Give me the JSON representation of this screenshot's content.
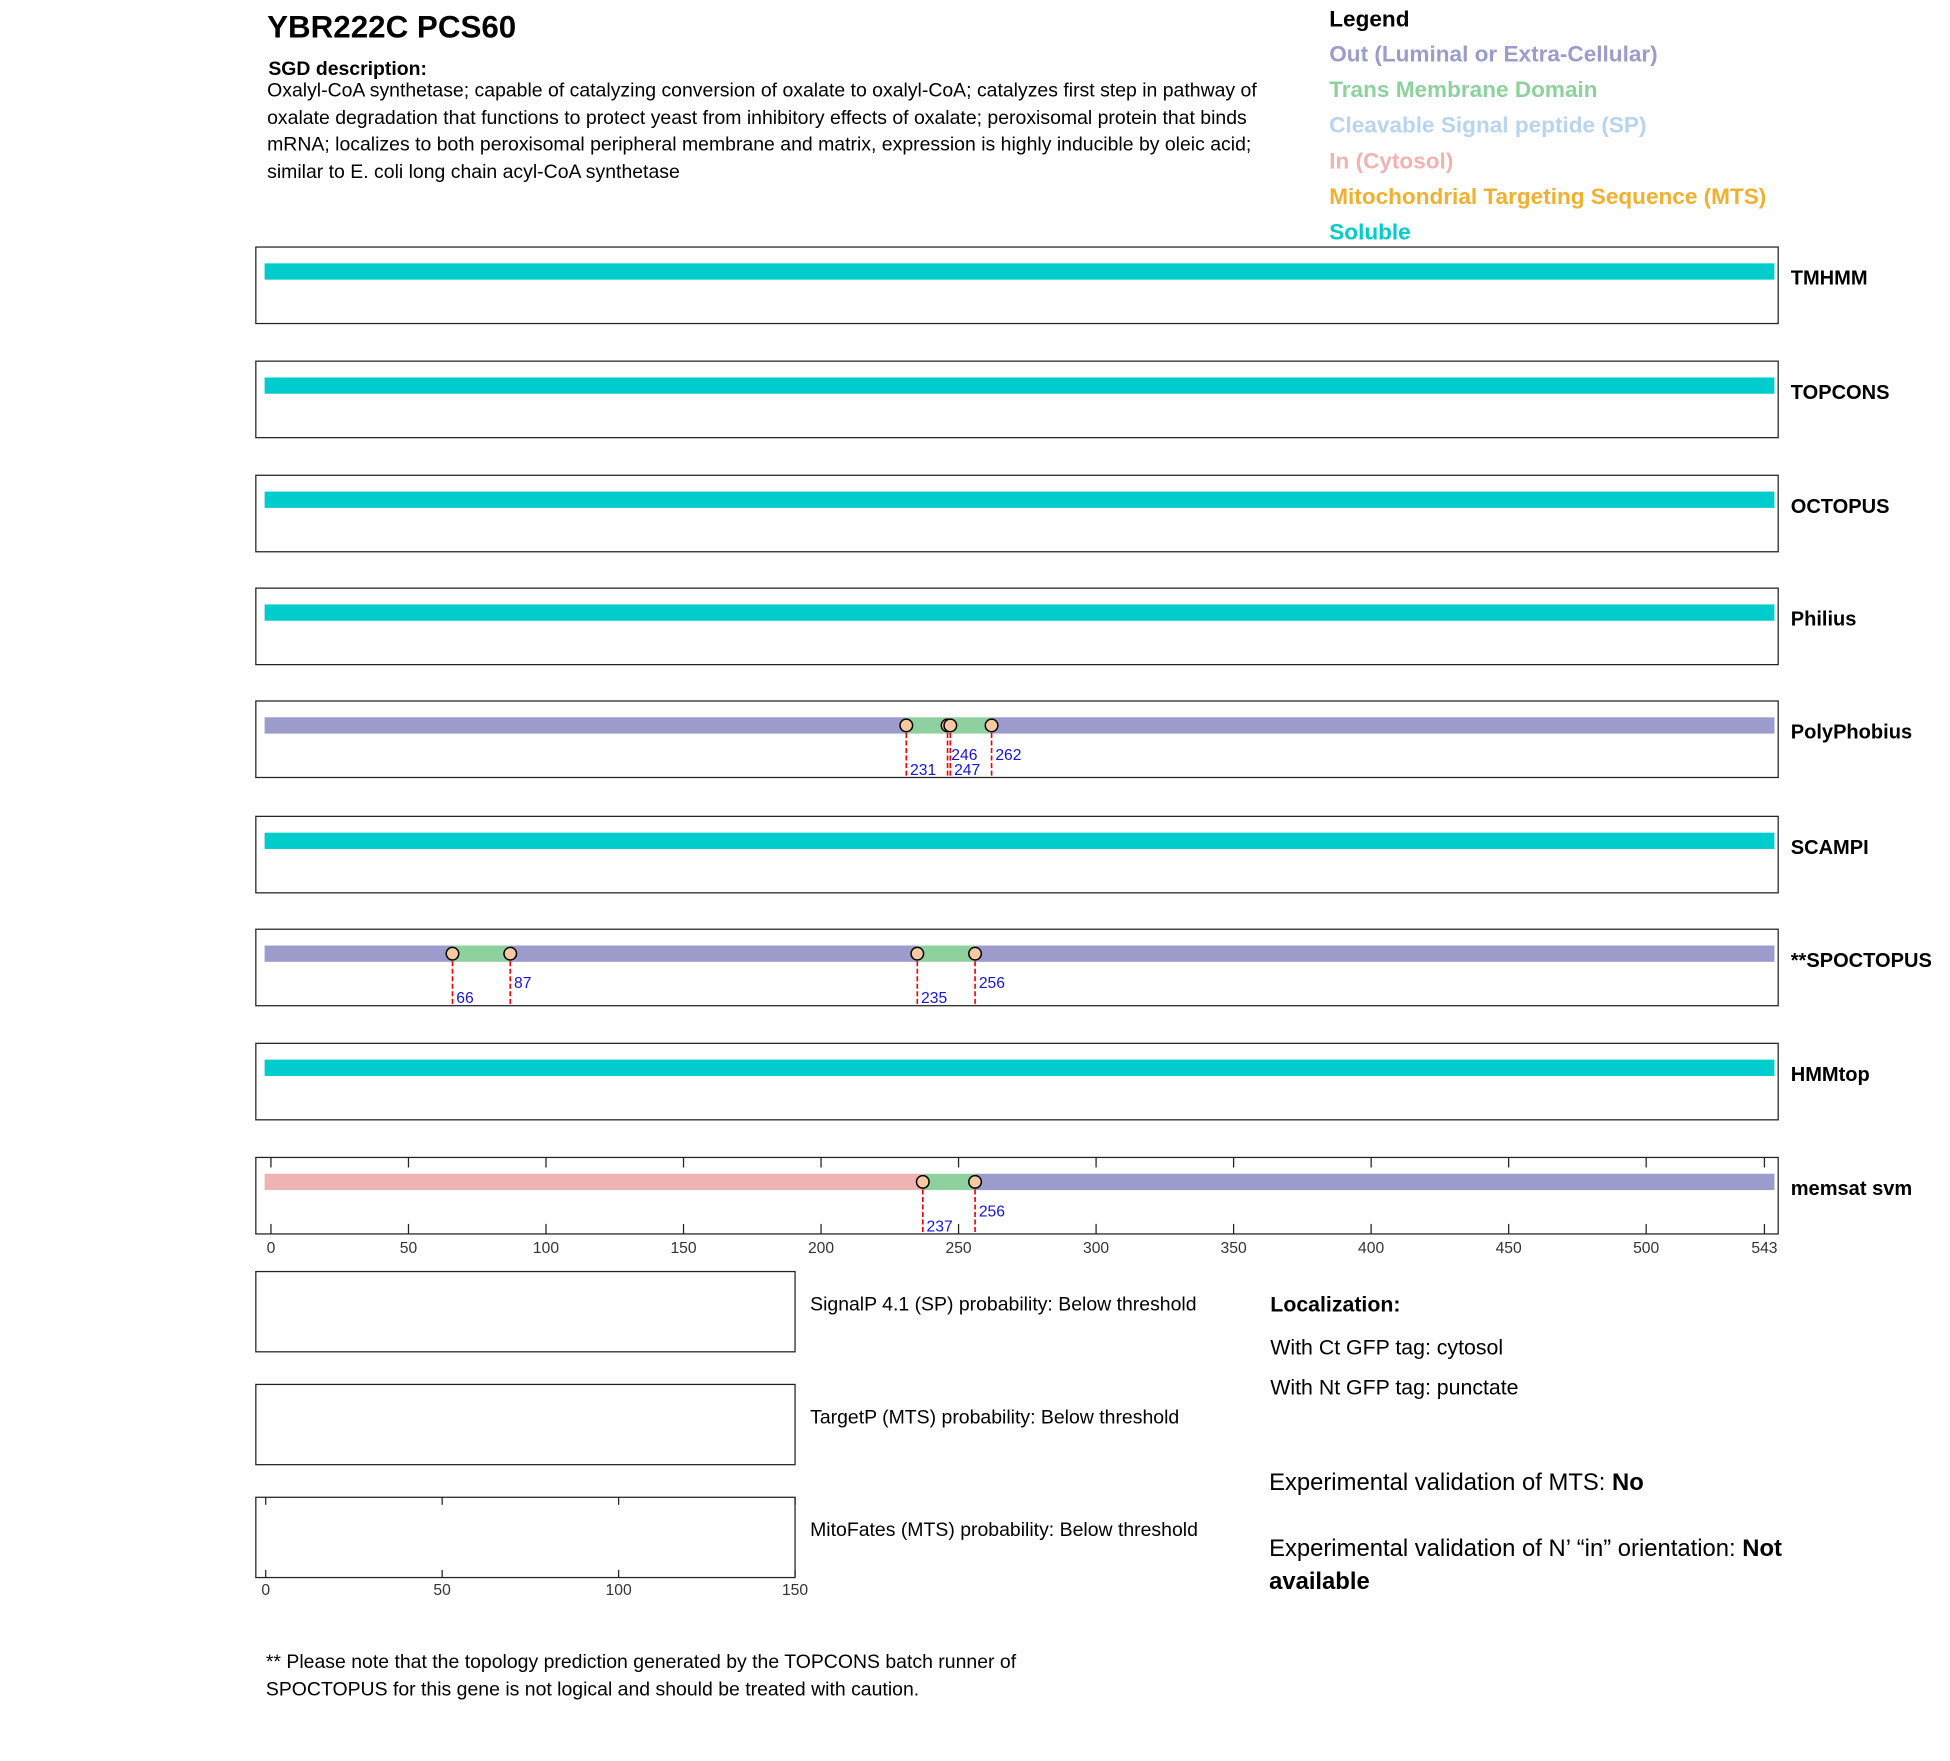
{
  "header": {
    "gene": "YBR222C  PCS60",
    "description_label": "SGD description:",
    "description": "Oxalyl-CoA synthetase; capable of catalyzing conversion of oxalate to oxalyl-CoA; catalyzes first step in pathway of oxalate degradation that functions to protect yeast from inhibitory effects of oxalate; peroxisomal protein that binds mRNA; localizes to both peroxisomal peripheral membrane and matrix, expression is highly inducible by oleic acid; similar to E. coli long chain acyl-CoA synthetase"
  },
  "legend": {
    "title": "Legend",
    "items": [
      {
        "label": "Out (Luminal or Extra-Cellular)",
        "color": "#9b9bcc"
      },
      {
        "label": "Trans Membrane Domain",
        "color": "#8fd19e"
      },
      {
        "label": "Cleavable Signal peptide (SP)",
        "color": "#b8d4ee"
      },
      {
        "label": "In (Cytosol)",
        "color": "#f0b3b3"
      },
      {
        "label": "Mitochondrial Targeting Sequence (MTS)",
        "color": "#f0b030"
      },
      {
        "label": "Soluble",
        "color": "#00cccc"
      }
    ]
  },
  "tracks_axis": {
    "xlim": [
      -5.5,
      548
    ],
    "xticks": [
      0,
      50,
      100,
      150,
      200,
      250,
      300,
      350,
      400,
      450,
      500,
      543
    ]
  },
  "tracks": [
    {
      "name": "TMHMM",
      "states": [
        5
      ],
      "boundaries": []
    },
    {
      "name": "TOPCONS",
      "states": [
        5
      ],
      "boundaries": []
    },
    {
      "name": "OCTOPUS",
      "states": [
        5
      ],
      "boundaries": []
    },
    {
      "name": "Philius",
      "states": [
        5
      ],
      "boundaries": []
    },
    {
      "name": "PolyPhobius",
      "states": [
        0,
        1,
        3,
        1,
        0
      ],
      "boundaries": [
        231,
        246,
        247,
        262
      ]
    },
    {
      "name": "SCAMPI",
      "states": [
        5
      ],
      "boundaries": []
    },
    {
      "name": "**SPOCTOPUS",
      "states": [
        0,
        1,
        0,
        1,
        0
      ],
      "boundaries": [
        66,
        87,
        235,
        256
      ]
    },
    {
      "name": "HMMtop",
      "states": [
        5
      ],
      "boundaries": []
    },
    {
      "name": "memsat svm",
      "states": [
        3,
        1,
        0
      ],
      "boundaries": [
        237,
        256
      ]
    }
  ],
  "probability_axis": {
    "xlim": [
      -2.8,
      150
    ],
    "xticks": [
      0,
      50,
      100,
      150
    ]
  },
  "probabilities": [
    "SignalP 4.1 (SP) probability: Below threshold",
    "TargetP (MTS) probability: Below threshold",
    "MitoFates (MTS) probability: Below threshold"
  ],
  "localization": {
    "title": "Localization:",
    "lines": [
      "With Ct GFP tag: cytosol",
      "With Nt GFP tag: punctate"
    ]
  },
  "validation": [
    {
      "label": "Experimental validation of MTS: ",
      "value": "No"
    },
    {
      "label": "Experimental validation of N’ “in” orientation: ",
      "value": "Not available"
    }
  ],
  "footnote": "** Please note that the topology prediction generated by the TOPCONS batch runner of SPOCTOPUS for this gene is not logical and should be treated with caution."
}
